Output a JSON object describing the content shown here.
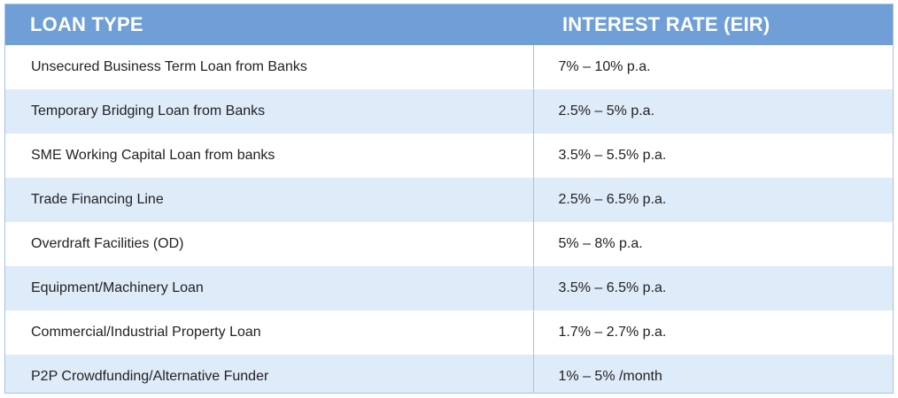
{
  "table": {
    "headers": {
      "loan_type": "LOAN TYPE",
      "interest_rate": "INTEREST RATE (EIR)"
    },
    "rows": [
      {
        "loan_type": "Unsecured Business Term Loan from Banks",
        "rate": "7% – 10% p.a."
      },
      {
        "loan_type": "Temporary Bridging Loan from Banks",
        "rate": "2.5% – 5% p.a."
      },
      {
        "loan_type": "SME Working Capital Loan from banks",
        "rate": "3.5% – 5.5% p.a."
      },
      {
        "loan_type": "Trade Financing Line",
        "rate": "2.5% – 6.5% p.a."
      },
      {
        "loan_type": "Overdraft Facilities (OD)",
        "rate": "5% – 8% p.a."
      },
      {
        "loan_type": "Equipment/Machinery Loan",
        "rate": "3.5% – 6.5% p.a."
      },
      {
        "loan_type": "Commercial/Industrial Property Loan",
        "rate": "1.7% – 2.7% p.a."
      },
      {
        "loan_type": "P2P Crowdfunding/Alternative Funder",
        "rate": "1% – 5% /month"
      }
    ]
  },
  "colors": {
    "header_bg": "#6f9fd6",
    "stripe_bg": "#deebf9",
    "border": "#a9c1e2"
  }
}
